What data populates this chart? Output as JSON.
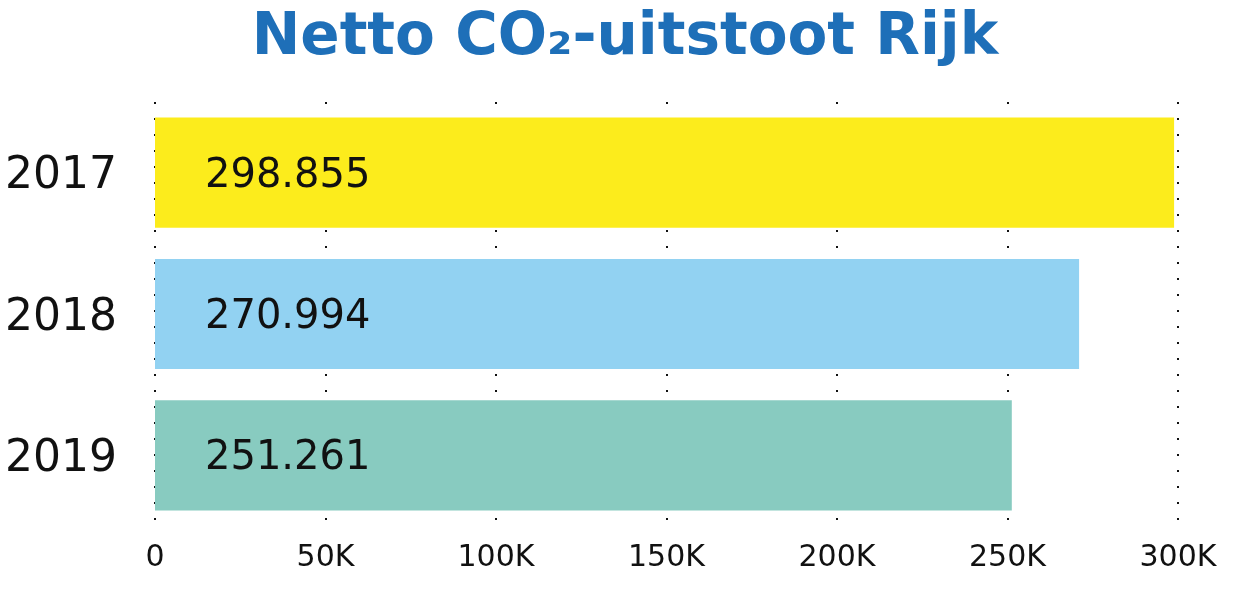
{
  "chart_data": {
    "type": "bar",
    "orientation": "horizontal",
    "title": "Netto CO₂-uitstoot Rijk",
    "categories": [
      "2017",
      "2018",
      "2019"
    ],
    "values": [
      298855,
      270994,
      251261
    ],
    "colors": [
      "#fcec1c",
      "#92d2f2",
      "#88cbc0"
    ],
    "value_labels": [
      "298.855",
      "270.994",
      "251.261"
    ],
    "xlim": [
      0,
      300000
    ],
    "xticks": [
      0,
      {
        "value": 50000,
        "label": "50K"
      },
      {
        "value": 100000,
        "label": "100K"
      },
      {
        "value": 150000,
        "label": "150K"
      },
      {
        "value": 200000,
        "label": "200K"
      },
      {
        "value": 250000,
        "label": "250K"
      },
      {
        "value": 300000,
        "label": "300K"
      }
    ],
    "grid": "x"
  }
}
